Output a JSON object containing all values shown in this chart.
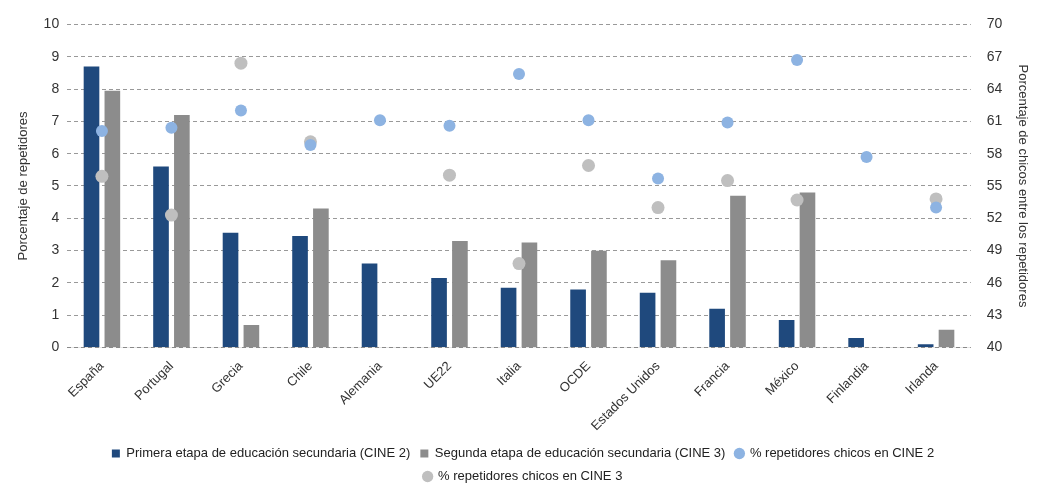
{
  "chart_data": {
    "type": "bar",
    "ylabel": "Porcentaje de repetidores",
    "y2label": "Porcentaje de chicos entre los repetidores",
    "categories": [
      "España",
      "Portugal",
      "Grecia",
      "Chile",
      "Alemania",
      "UE22",
      "Italia",
      "OCDE",
      "Estados Unidos",
      "Francia",
      "México",
      "Finlandia",
      "Irlanda"
    ],
    "series": [
      {
        "name": "Primera etapa de educación secundaria (CINE 2)",
        "color": "#1f497d",
        "values": [
          8.7,
          5.6,
          3.55,
          3.45,
          2.6,
          2.15,
          1.85,
          1.8,
          1.7,
          1.2,
          0.85,
          0.3,
          0.1
        ]
      },
      {
        "name": "Segunda etapa de educación secundaria (CINE 3)",
        "color": "#8c8c8c",
        "values": [
          7.95,
          7.2,
          0.7,
          4.3,
          null,
          3.3,
          3.25,
          3.0,
          2.7,
          4.7,
          4.8,
          null,
          0.55
        ]
      },
      {
        "name": "% repetidores chicos en CINE 2",
        "type": "scatter",
        "axis": "y2",
        "color": "#8db3e2",
        "values": [
          60.1,
          60.4,
          62.0,
          58.8,
          61.1,
          60.6,
          65.4,
          61.1,
          55.7,
          60.9,
          66.7,
          57.7,
          53.0
        ]
      },
      {
        "name": "% repetidores chicos en CINE 3",
        "type": "scatter",
        "axis": "y2",
        "color": "#bfbfbf",
        "values": [
          55.9,
          52.3,
          66.4,
          59.1,
          null,
          56.0,
          47.8,
          56.9,
          53.0,
          55.5,
          53.7,
          null,
          53.8
        ]
      }
    ],
    "ylim": [
      0,
      10
    ],
    "yticks": [
      0,
      1,
      2,
      3,
      4,
      5,
      6,
      7,
      8,
      9,
      10
    ],
    "y2lim": [
      40,
      70
    ],
    "y2ticks": [
      40,
      43,
      46,
      49,
      52,
      55,
      58,
      61,
      64,
      67,
      70
    ],
    "grid": "y",
    "legend": "bottom",
    "marker": "circle"
  }
}
